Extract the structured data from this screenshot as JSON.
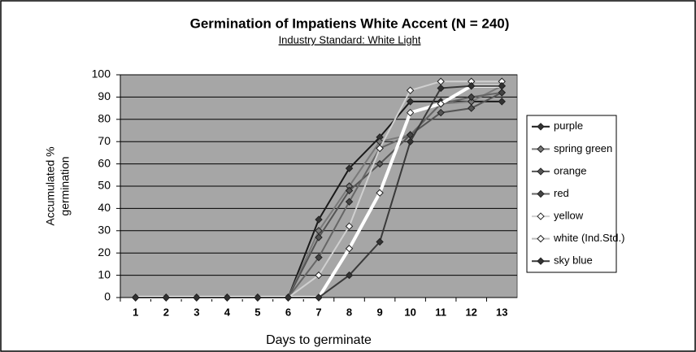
{
  "chart_data": {
    "type": "line",
    "title": "Germination of Impatiens White Accent (N = 240)",
    "subtitle": "Industry Standard: White Light",
    "x_label": "Days to germinate",
    "y_label": [
      "Accumulated %",
      "germination"
    ],
    "categories": [
      "1",
      "2",
      "3",
      "4",
      "5",
      "6",
      "7",
      "8",
      "9",
      "10",
      "11",
      "12",
      "13"
    ],
    "ylim": [
      0,
      100
    ],
    "yticks": [
      0,
      10,
      20,
      30,
      40,
      50,
      60,
      70,
      80,
      90,
      100
    ],
    "grid": true,
    "legend": "right",
    "series": [
      {
        "name": "purple",
        "color": "#1a1a1a",
        "marker": "#333333",
        "values": [
          0,
          0,
          0,
          0,
          0,
          0,
          35,
          58,
          72,
          88,
          88,
          88,
          88
        ]
      },
      {
        "name": "spring green",
        "color": "#7a7a7a",
        "marker": "#777777",
        "values": [
          0,
          0,
          0,
          0,
          0,
          0,
          30,
          50,
          70,
          73,
          87,
          88,
          95
        ]
      },
      {
        "name": "orange",
        "color": "#555555",
        "marker": "#555555",
        "values": [
          0,
          0,
          0,
          0,
          0,
          0,
          27,
          48,
          60,
          73,
          83,
          85,
          92
        ]
      },
      {
        "name": "red",
        "color": "#666666",
        "marker": "#444444",
        "values": [
          0,
          0,
          0,
          0,
          0,
          0,
          18,
          43,
          67,
          73,
          87,
          90,
          92
        ]
      },
      {
        "name": "yellow",
        "color": "#d0d0d0",
        "marker": "#ffffff",
        "values": [
          0,
          0,
          0,
          0,
          0,
          0,
          10,
          32,
          67,
          93,
          97,
          97,
          97
        ]
      },
      {
        "name": "white (Ind.Std.)",
        "color": "#ffffff",
        "marker": "#ffffff",
        "width": 4,
        "values": [
          0,
          0,
          0,
          0,
          0,
          0,
          0,
          22,
          47,
          83,
          87,
          95,
          95
        ]
      },
      {
        "name": "sky blue",
        "color": "#3a3a3a",
        "marker": "#333333",
        "values": [
          0,
          0,
          0,
          0,
          0,
          0,
          0,
          10,
          25,
          70,
          94,
          95,
          95
        ]
      }
    ]
  }
}
